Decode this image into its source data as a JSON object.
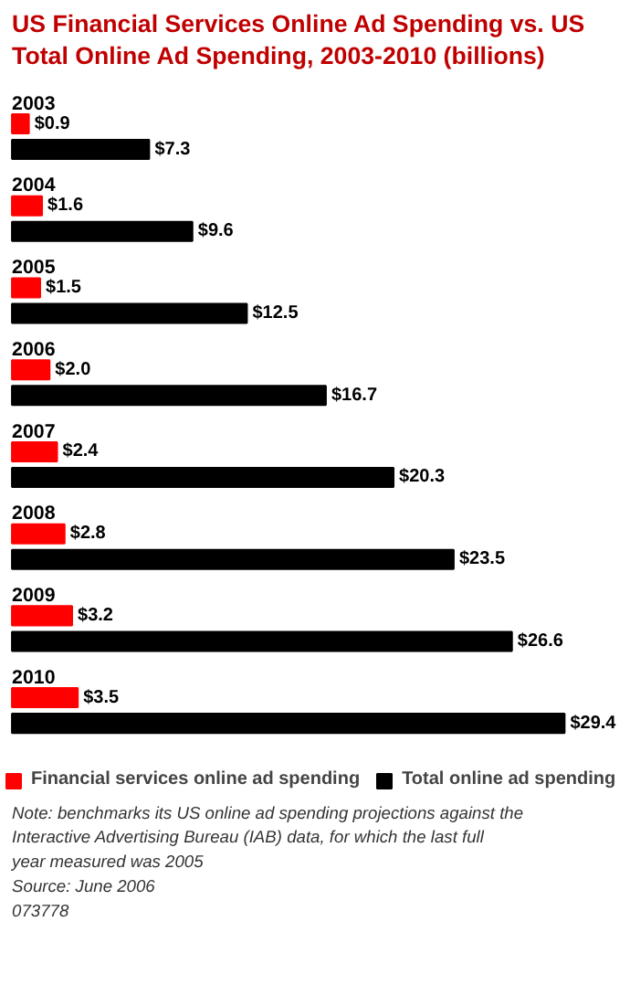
{
  "chart_data": {
    "type": "bar",
    "orientation": "horizontal",
    "title": "US Financial Services Online Ad Spending vs. US Total Online Ad Spending, 2003-2010 (billions)",
    "categories": [
      "2003",
      "2004",
      "2005",
      "2006",
      "2007",
      "2008",
      "2009",
      "2010"
    ],
    "series": [
      {
        "name": "Financial services online ad spending",
        "color": "#ff0000",
        "values": [
          0.9,
          1.6,
          1.5,
          2.0,
          2.4,
          2.8,
          3.2,
          3.5
        ],
        "value_labels": [
          "$0.9",
          "$1.6",
          "$1.5",
          "$2.0",
          "$2.4",
          "$2.8",
          "$3.2",
          "$3.5"
        ]
      },
      {
        "name": "Total online ad spending",
        "color": "#000000",
        "values": [
          7.3,
          9.6,
          12.5,
          16.7,
          20.3,
          23.5,
          26.6,
          29.4
        ],
        "value_labels": [
          "$7.3",
          "$9.6",
          "$12.5",
          "$16.7",
          "$20.3",
          "$23.5",
          "$26.6",
          "$29.4"
        ]
      }
    ],
    "legend": "bottom",
    "annotations": [
      "Note: benchmarks its US online ad spending projections against the Interactive Advertising Bureau (IAB) data, for which the last full year measured was 2005",
      "Source: June 2006",
      "073778"
    ]
  }
}
